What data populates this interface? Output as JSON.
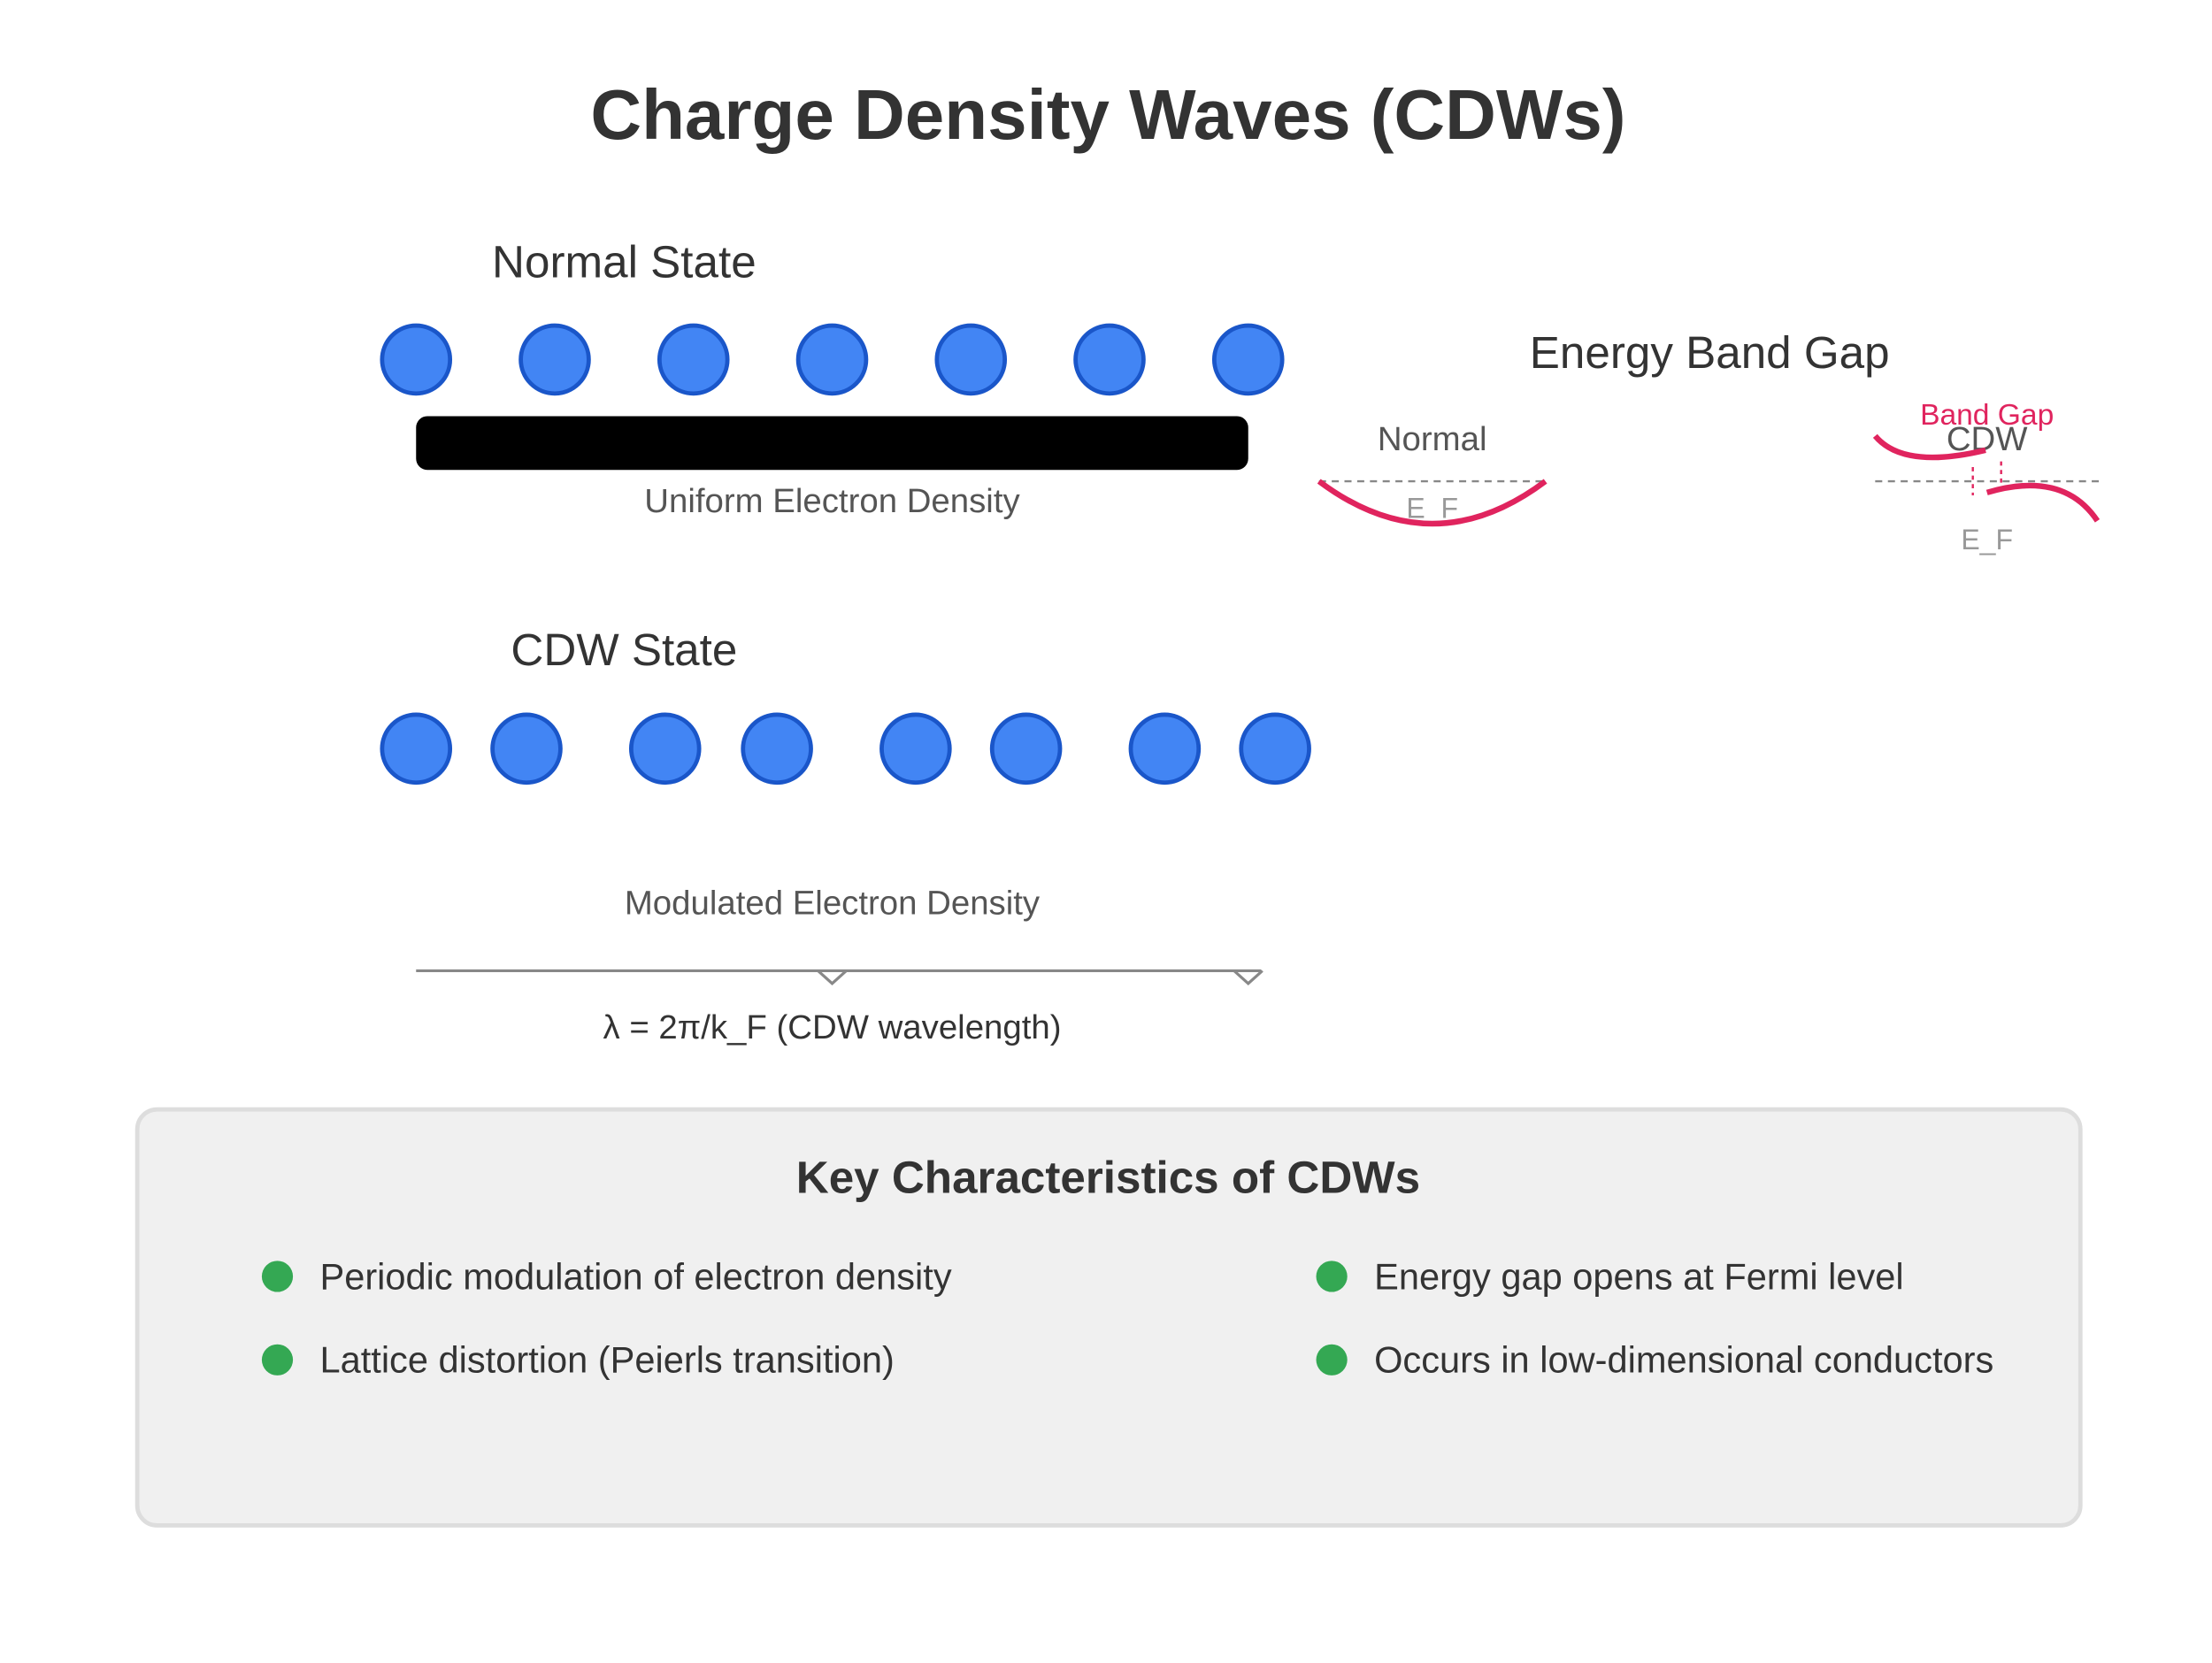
{
  "title": "Charge Density Waves (CDWs)",
  "normal_state": {
    "heading": "Normal State",
    "caption": "Uniform Electron Density"
  },
  "cdw_state": {
    "heading": "CDW State",
    "caption": "Modulated Electron Density",
    "wavelength_label": "λ = 2π/k_F (CDW wavelength)"
  },
  "band_gap": {
    "heading": "Energy Band Gap",
    "normal_label": "Normal",
    "cdw_label": "CDW",
    "gap_label": "Band Gap",
    "fermi_label_normal": "E_F",
    "fermi_label_cdw": "E_F"
  },
  "characteristics": {
    "heading": "Key Characteristics of CDWs",
    "items": [
      "Periodic modulation of electron density",
      "Energy gap opens at Fermi level",
      "Lattice distortion (Peierls transition)",
      "Occurs in low-dimensional conductors"
    ]
  },
  "colors": {
    "electron_fill": "#4285f4",
    "electron_stroke": "#1a56c9",
    "band_curve": "#e0245e",
    "bullet": "#34a853",
    "panel_bg": "#f0f0f0",
    "panel_border": "#dddddd",
    "title_text": "#333333",
    "caption_text": "#555555"
  }
}
